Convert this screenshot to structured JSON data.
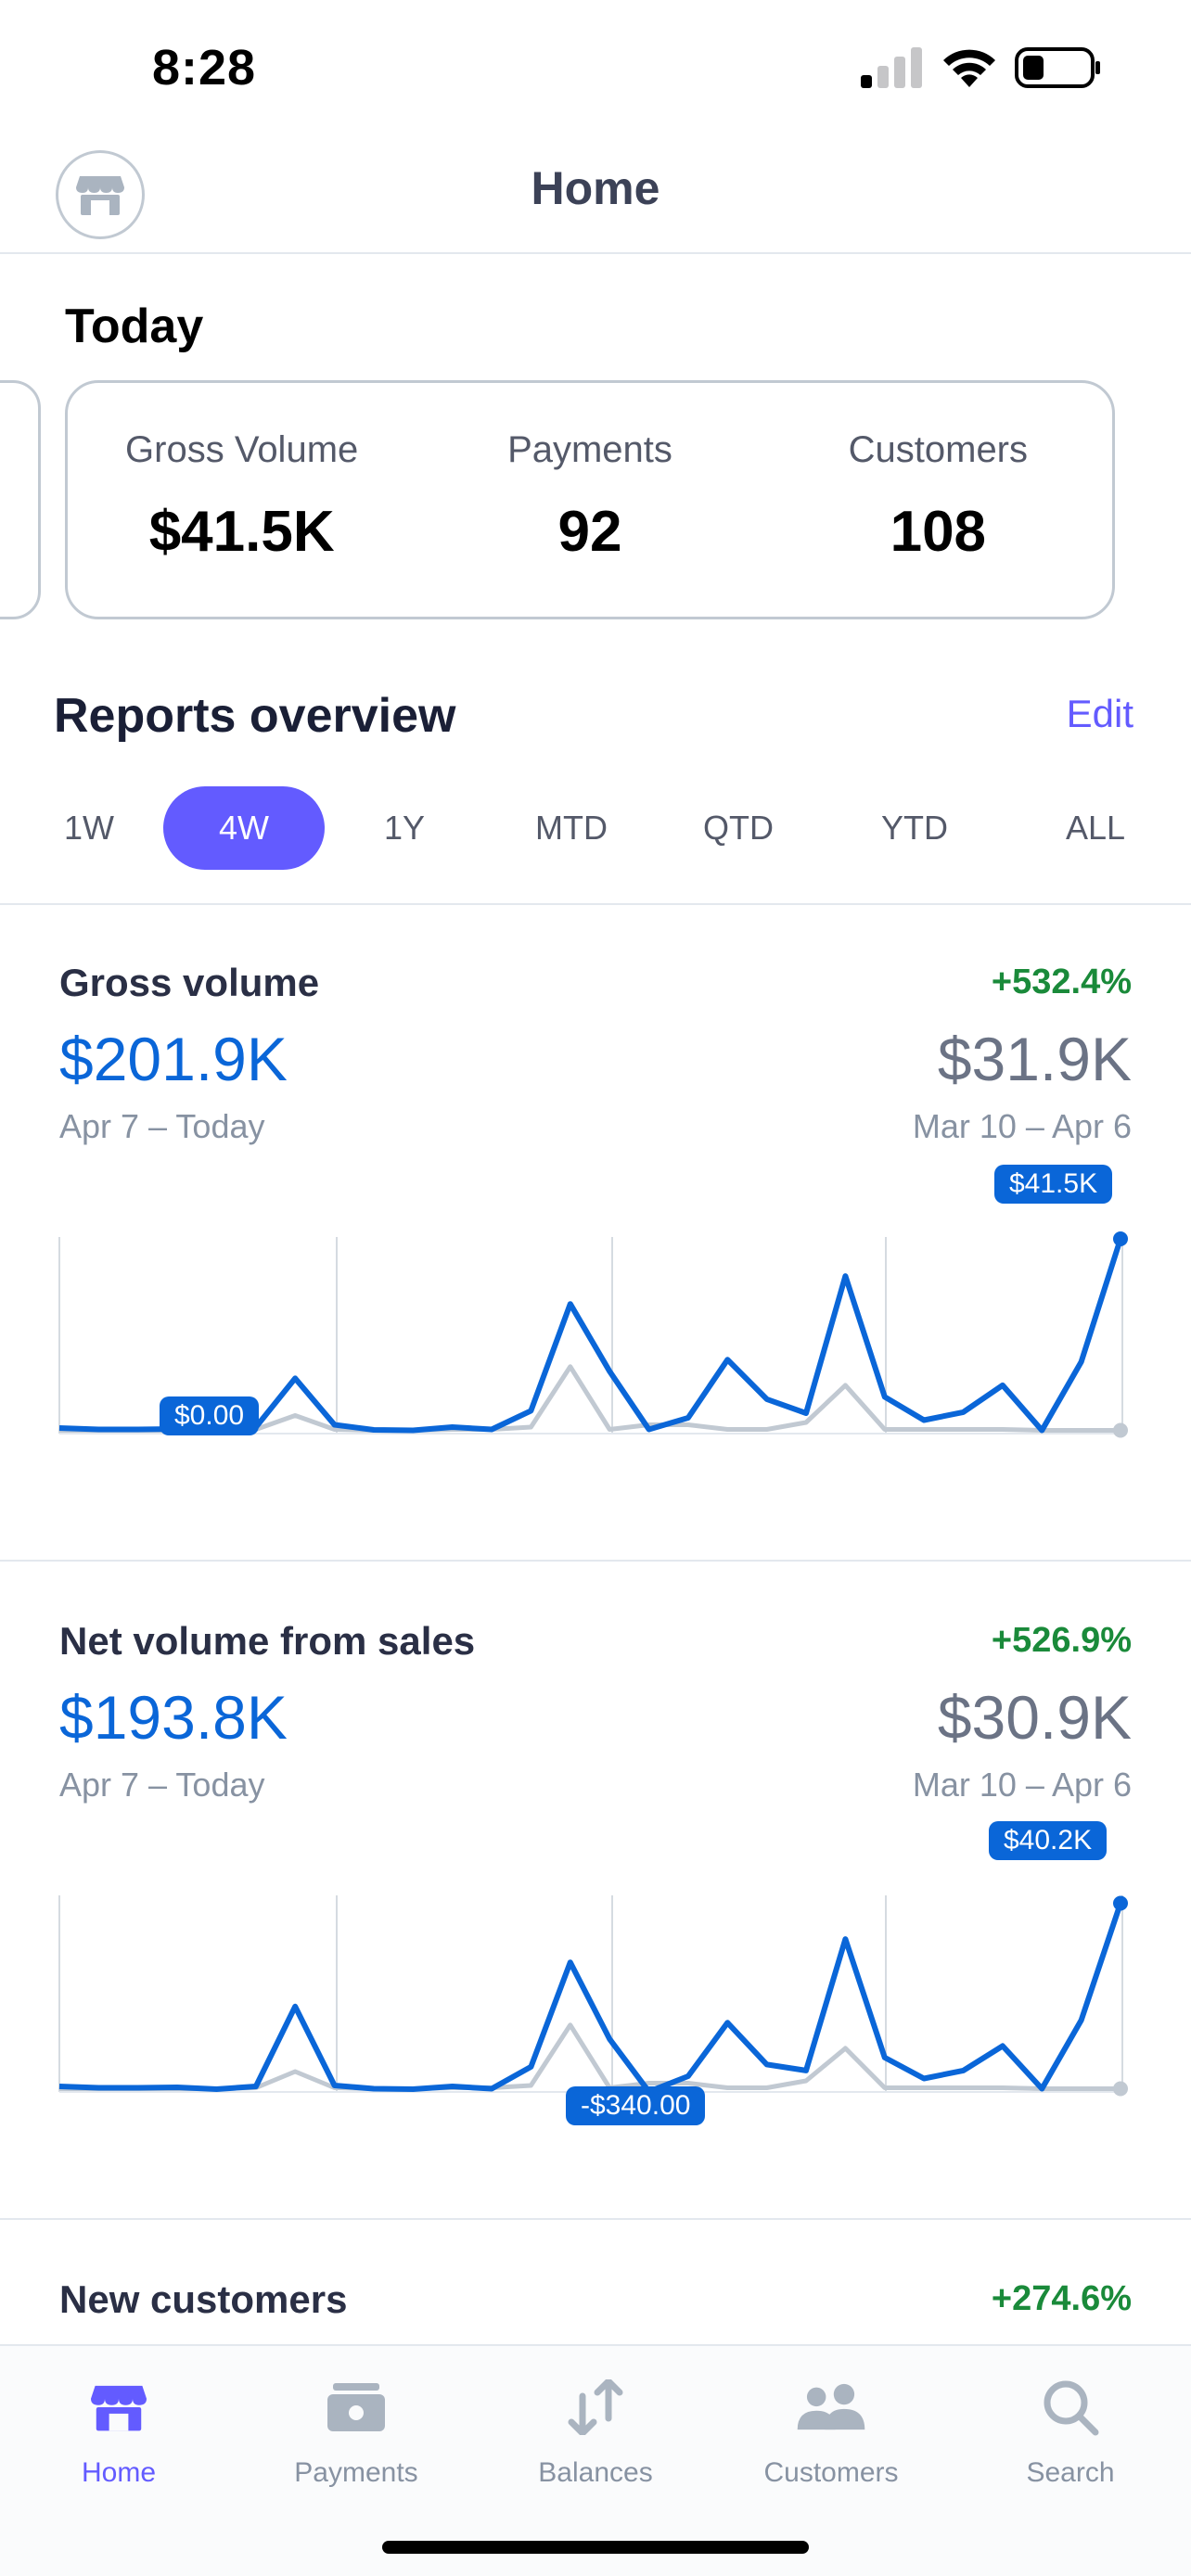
{
  "status_bar": {
    "time": "8:28"
  },
  "header": {
    "title": "Home"
  },
  "today": {
    "title": "Today",
    "metrics": [
      {
        "label": "Gross Volume",
        "value": "$41.5K"
      },
      {
        "label": "Payments",
        "value": "92"
      },
      {
        "label": "Customers",
        "value": "108"
      }
    ]
  },
  "reports": {
    "title": "Reports overview",
    "edit_label": "Edit",
    "ranges": [
      "1W",
      "4W",
      "1Y",
      "MTD",
      "QTD",
      "YTD",
      "ALL"
    ],
    "selected_range": "4W"
  },
  "gross_volume": {
    "title": "Gross volume",
    "change": "+532.4%",
    "value": "$201.9K",
    "period": "Apr 7 – Today",
    "prev_value": "$31.9K",
    "prev_period": "Mar 10 – Apr 6",
    "min_badge": "$0.00",
    "max_badge": "$41.5K"
  },
  "net_volume": {
    "title": "Net volume from sales",
    "change": "+526.9%",
    "value": "$193.8K",
    "period": "Apr 7 – Today",
    "prev_value": "$30.9K",
    "prev_period": "Mar 10 – Apr 6",
    "min_badge": "-$340.00",
    "max_badge": "$40.2K"
  },
  "new_customers": {
    "title": "New customers",
    "change": "+274.6%"
  },
  "tabs": [
    {
      "label": "Home",
      "icon": "store-icon",
      "active": true
    },
    {
      "label": "Payments",
      "icon": "wallet-icon",
      "active": false
    },
    {
      "label": "Balances",
      "icon": "transfer-arrows-icon",
      "active": false
    },
    {
      "label": "Customers",
      "icon": "people-icon",
      "active": false
    },
    {
      "label": "Search",
      "icon": "search-icon",
      "active": false
    }
  ],
  "colors": {
    "accent": "#635bff",
    "current_line": "#0a66d8",
    "previous_line": "#c1c9d2",
    "positive": "#1a8a3a"
  },
  "chart_data": [
    {
      "type": "line",
      "title": "Gross volume",
      "series": [
        {
          "values": [
            0.8,
            0.5,
            0.5,
            0.6,
            0.7,
            1.0,
            11.5,
            1.5,
            0.4,
            0.3,
            1.0,
            0.5,
            4.5,
            27.5,
            13.0,
            0.5,
            3.0,
            15.5,
            7.0,
            4.0,
            33.5,
            7.5,
            2.5,
            4.2,
            10.0,
            0.3,
            15.0,
            41.5
          ]
        },
        {
          "values": [
            0.3,
            0.3,
            0.3,
            0.3,
            0.3,
            0.5,
            3.5,
            0.5,
            0.3,
            0.3,
            0.5,
            0.5,
            1.0,
            14.0,
            0.5,
            1.5,
            1.5,
            0.5,
            0.5,
            2.0,
            10.0,
            0.5,
            0.5,
            0.5,
            0.5,
            0.3,
            0.3,
            0.3
          ]
        }
      ]
    },
    {
      "type": "line",
      "title": "Net volume from sales",
      "series": [
        {
          "values": [
            0.8,
            0.5,
            0.5,
            0.6,
            0.2,
            0.8,
            18.0,
            1.0,
            0.3,
            0.2,
            0.8,
            0.3,
            5.0,
            27.5,
            11.0,
            -0.34,
            3.0,
            14.5,
            5.5,
            4.2,
            32.5,
            7.0,
            2.5,
            4.2,
            9.5,
            0.3,
            15.0,
            40.2
          ]
        },
        {
          "values": [
            0.3,
            0.3,
            0.3,
            0.3,
            0.3,
            0.5,
            4.0,
            0.5,
            0.3,
            0.3,
            0.5,
            0.5,
            1.0,
            14.0,
            0.5,
            1.5,
            1.5,
            0.5,
            0.5,
            2.0,
            9.0,
            0.5,
            0.5,
            0.5,
            0.5,
            0.3,
            0.3,
            0.3
          ]
        }
      ]
    }
  ]
}
